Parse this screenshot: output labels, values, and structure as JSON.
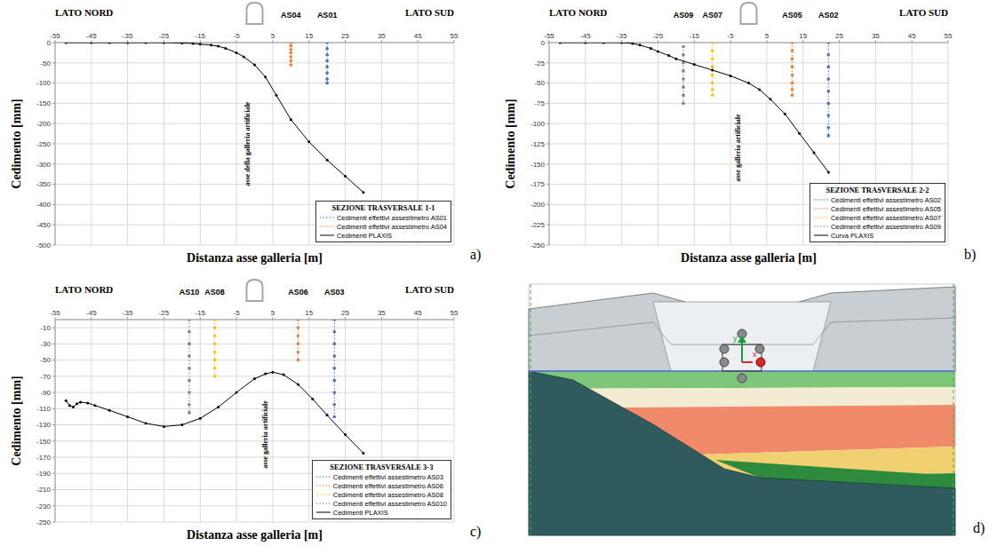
{
  "chart_data": [
    {
      "type": "scatter",
      "panel": "a)",
      "title": "SEZIONE TRASVERSALE 1-1",
      "x_label": "Distanza asse galleria [m]",
      "y_label": "Cedimento [mm]",
      "side_labels": [
        "LATO NORD",
        "LATO SUD"
      ],
      "annotations": [
        {
          "text": "asse della galleria artificiale",
          "x": -2,
          "y": -250
        }
      ],
      "xlim": [
        -55,
        55
      ],
      "xticks": [
        -55,
        -45,
        -35,
        -25,
        -15,
        -5,
        5,
        15,
        25,
        35,
        45,
        55
      ],
      "ylim": [
        -500,
        0
      ],
      "yticks": [
        0,
        -50,
        -100,
        -150,
        -200,
        -250,
        -300,
        -350,
        -400,
        -450,
        -500
      ],
      "grid": true,
      "legend": "lower right",
      "series": [
        {
          "name": "Cedimenti effettivi assestimetro AS01",
          "label": "AS01",
          "color": "#4472c4",
          "marker": "circle",
          "line_style": "dotted",
          "x": [
            20,
            20,
            20,
            20,
            20,
            20,
            20,
            20
          ],
          "values": [
            0,
            -15,
            -30,
            -45,
            -60,
            -75,
            -90,
            -100
          ]
        },
        {
          "name": "Cedimenti effettivi assestimetro AS04",
          "label": "AS04",
          "color": "#ed7d31",
          "marker": "circle",
          "line_style": "dotted",
          "x": [
            10,
            10,
            10,
            10,
            10,
            10,
            10
          ],
          "values": [
            0,
            -8,
            -17,
            -25,
            -35,
            -45,
            -55
          ]
        },
        {
          "name": "Cedimenti PLAXIS",
          "color": "#000000",
          "marker": "circle",
          "line_style": "solid",
          "x": [
            -52,
            -45,
            -40,
            -35,
            -30,
            -25,
            -20,
            -17,
            -15,
            -12,
            -10,
            -8,
            -5,
            -3,
            0,
            3,
            6,
            10,
            15,
            20,
            25,
            30
          ],
          "values": [
            0,
            0,
            0,
            0,
            0,
            0,
            -1,
            -2,
            -4,
            -6,
            -9,
            -14,
            -25,
            -35,
            -55,
            -85,
            -130,
            -190,
            -245,
            -290,
            -330,
            -370
          ]
        }
      ]
    },
    {
      "type": "scatter",
      "panel": "b)",
      "title": "SEZIONE TRASVERSALE 2-2",
      "x_label": "Distanza asse galleria [m]",
      "y_label": "Cedimento [mm]",
      "side_labels": [
        "LATO NORD",
        "LATO SUD"
      ],
      "annotations": [
        {
          "text": "asse galleria artificiale",
          "x": -3,
          "y": -130
        }
      ],
      "xlim": [
        -55,
        55
      ],
      "xticks": [
        -55,
        -45,
        -35,
        -25,
        -15,
        -5,
        5,
        15,
        25,
        35,
        45,
        55
      ],
      "ylim": [
        -250,
        0
      ],
      "yticks": [
        0,
        -25,
        -50,
        -75,
        -100,
        -125,
        -150,
        -175,
        -200,
        -225,
        -250
      ],
      "grid": true,
      "legend": "lower right",
      "series": [
        {
          "name": "Cedimenti effettivi assestimetro AS02",
          "label": "AS02",
          "color": "#4472c4",
          "marker": "circle",
          "line_style": "dotted",
          "x": [
            22,
            22,
            22,
            22,
            22,
            22,
            22,
            22,
            22
          ],
          "values": [
            0,
            -15,
            -30,
            -45,
            -60,
            -75,
            -90,
            -105,
            -115
          ]
        },
        {
          "name": "Cedimenti effettivi assestimetro AS05",
          "label": "AS05",
          "color": "#ed7d31",
          "marker": "circle",
          "line_style": "dotted",
          "x": [
            12,
            12,
            12,
            12,
            12,
            12,
            12,
            12
          ],
          "values": [
            0,
            -10,
            -20,
            -30,
            -40,
            -50,
            -58,
            -65
          ]
        },
        {
          "name": "Cedimenti effettivi assestimetro AS07",
          "label": "AS07",
          "color": "#ffc000",
          "marker": "circle",
          "line_style": "dotted",
          "x": [
            -10,
            -10,
            -10,
            -10,
            -10,
            -10,
            -10,
            -10
          ],
          "values": [
            0,
            -10,
            -20,
            -30,
            -40,
            -50,
            -58,
            -65
          ]
        },
        {
          "name": "Cedimenti effettivi assestimetro AS09",
          "label": "AS09",
          "color": "#7f7f7f",
          "marker": "circle",
          "line_style": "dotted",
          "x": [
            -18,
            -18,
            -18,
            -18,
            -18,
            -18,
            -18,
            -18
          ],
          "values": [
            -5,
            -15,
            -25,
            -35,
            -45,
            -55,
            -65,
            -75
          ]
        },
        {
          "name": "Curva PLAXIS",
          "color": "#000000",
          "marker": "circle",
          "line_style": "solid",
          "x": [
            -52,
            -45,
            -40,
            -35,
            -32,
            -30,
            -27,
            -25,
            -22,
            -20,
            -15,
            -10,
            -5,
            0,
            3,
            6,
            10,
            14,
            18,
            22
          ],
          "values": [
            0,
            0,
            0,
            0,
            -1,
            -3,
            -7,
            -11,
            -16,
            -20,
            -27,
            -34,
            -41,
            -50,
            -58,
            -70,
            -88,
            -112,
            -136,
            -160
          ]
        }
      ]
    },
    {
      "type": "scatter",
      "panel": "c)",
      "title": "SEZIONE TRASVERSALE 3-3",
      "x_label": "Distanza asse galleria [m]",
      "y_label": "Cedimento [mm]",
      "side_labels": [
        "LATO NORD",
        "LATO SUD"
      ],
      "annotations": [
        {
          "text": "asse galleria artificiale",
          "x": 3,
          "y": -142
        }
      ],
      "xlim": [
        -55,
        55
      ],
      "xticks": [
        -55,
        -45,
        -35,
        -25,
        -15,
        -5,
        5,
        15,
        25,
        35,
        45,
        55
      ],
      "ylim": [
        -250,
        0
      ],
      "yticks": [
        -10,
        -30,
        -50,
        -70,
        -90,
        -110,
        -130,
        -150,
        -170,
        -190,
        -210,
        -230,
        -250
      ],
      "grid": true,
      "legend": "lower right",
      "series": [
        {
          "name": "Cedimenti effettivi assestimetro AS03",
          "label": "AS03",
          "color": "#4472c4",
          "marker": "circle",
          "line_style": "dotted",
          "x": [
            22,
            22,
            22,
            22,
            22,
            22,
            22,
            22,
            22
          ],
          "values": [
            0,
            -15,
            -30,
            -45,
            -60,
            -75,
            -90,
            -105,
            -120
          ]
        },
        {
          "name": "Cedimenti effettivi assestimetro AS06",
          "label": "AS06",
          "color": "#ed7d31",
          "marker": "circle",
          "line_style": "dotted",
          "x": [
            12,
            12,
            12,
            12,
            12,
            12
          ],
          "values": [
            0,
            -10,
            -20,
            -30,
            -40,
            -50
          ]
        },
        {
          "name": "Cedimenti effettivi assestimetro AS08",
          "label": "AS08",
          "color": "#ffc000",
          "marker": "circle",
          "line_style": "dotted",
          "x": [
            -11,
            -11,
            -11,
            -11,
            -11,
            -11,
            -11,
            -11
          ],
          "values": [
            0,
            -10,
            -20,
            -30,
            -40,
            -50,
            -60,
            -70
          ]
        },
        {
          "name": "Cedimenti effettivi assestimetro AS010",
          "label": "AS10",
          "color": "#7f7f7f",
          "marker": "circle",
          "line_style": "dotted",
          "x": [
            -18,
            -18,
            -18,
            -18,
            -18,
            -18,
            -18,
            -18,
            -18
          ],
          "values": [
            0,
            -15,
            -30,
            -45,
            -60,
            -75,
            -90,
            -105,
            -115
          ]
        },
        {
          "name": "Cedimenti PLAXIS",
          "color": "#000000",
          "marker": "circle",
          "line_style": "solid",
          "x": [
            -52,
            -51,
            -50,
            -49,
            -48,
            -46,
            -44,
            -40,
            -35,
            -30,
            -25,
            -20,
            -15,
            -10,
            -5,
            0,
            3,
            5,
            8,
            12,
            16,
            20,
            25,
            30
          ],
          "values": [
            -100,
            -106,
            -108,
            -104,
            -102,
            -103,
            -106,
            -112,
            -120,
            -128,
            -132,
            -130,
            -122,
            -108,
            -90,
            -73,
            -67,
            -65,
            -68,
            -80,
            -98,
            -118,
            -142,
            -165
          ]
        }
      ]
    }
  ],
  "diagram": {
    "panel": "d)",
    "axis_labels": {
      "y": "y",
      "x": "x"
    }
  }
}
